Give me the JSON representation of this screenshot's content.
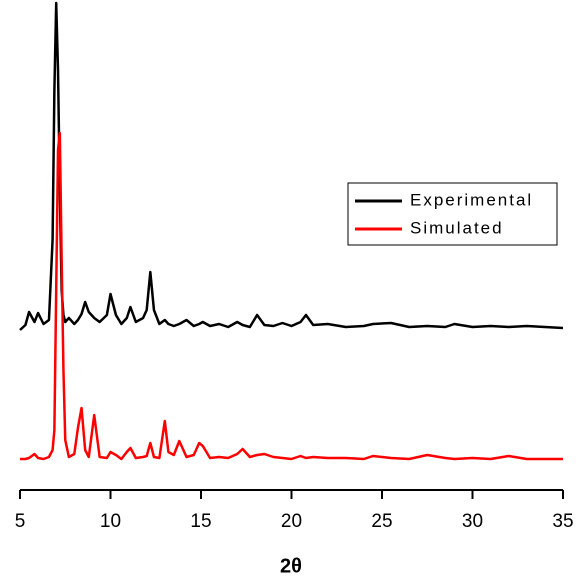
{
  "chart_data": {
    "type": "line",
    "xlabel": "2θ",
    "x": [
      5.0,
      5.3,
      5.5,
      5.8,
      6.0,
      6.3,
      6.6,
      6.8,
      6.9,
      7.0,
      7.1,
      7.2,
      7.3,
      7.4,
      7.5,
      7.7,
      8.0,
      8.2,
      8.4,
      8.6,
      8.8,
      9.1,
      9.4,
      9.8,
      10.0,
      10.3,
      10.6,
      10.9,
      11.1,
      11.4,
      11.8,
      12.0,
      12.2,
      12.4,
      12.7,
      13.0,
      13.2,
      13.5,
      13.8,
      14.2,
      14.6,
      14.9,
      15.1,
      15.5,
      16.0,
      16.5,
      17.0,
      17.3,
      17.7,
      18.1,
      18.5,
      19.0,
      19.5,
      20.0,
      20.5,
      20.8,
      21.2,
      22.0,
      23.0,
      24.0,
      24.5,
      25.5,
      26.5,
      27.5,
      28.5,
      29.0,
      30.0,
      31.0,
      32.0,
      33.0,
      34.0,
      35.0
    ],
    "series": [
      {
        "name": "Experimental",
        "color": "#000000",
        "values": [
          160,
          165,
          178,
          168,
          177,
          166,
          170,
          250,
          400,
          487,
          420,
          300,
          200,
          175,
          168,
          172,
          166,
          170,
          176,
          188,
          178,
          172,
          168,
          175,
          196,
          175,
          166,
          172,
          183,
          168,
          172,
          180,
          218,
          180,
          166,
          170,
          166,
          164,
          166,
          170,
          164,
          166,
          168,
          164,
          166,
          163,
          168,
          165,
          163,
          175,
          165,
          164,
          167,
          164,
          168,
          175,
          165,
          166,
          163,
          164,
          166,
          167,
          163,
          164,
          163,
          166,
          163,
          164,
          163,
          164,
          163,
          162
        ]
      },
      {
        "name": "Simulated",
        "color": "#ff0000",
        "values": [
          31,
          31,
          32,
          36,
          32,
          31,
          33,
          40,
          60,
          200,
          340,
          357,
          232,
          120,
          50,
          33,
          36,
          62,
          82,
          40,
          33,
          75,
          33,
          32,
          38,
          35,
          31,
          38,
          42,
          32,
          33,
          34,
          47,
          33,
          32,
          69,
          38,
          35,
          49,
          33,
          35,
          47,
          44,
          32,
          33,
          32,
          36,
          41,
          33,
          35,
          36,
          33,
          32,
          31,
          34,
          32,
          33,
          32,
          32,
          31,
          34,
          32,
          31,
          35,
          32,
          31,
          32,
          31,
          34,
          31,
          31,
          31
        ]
      }
    ],
    "xlim": [
      5,
      35
    ],
    "xticks": [
      5,
      10,
      15,
      20,
      25,
      30,
      35
    ]
  }
}
